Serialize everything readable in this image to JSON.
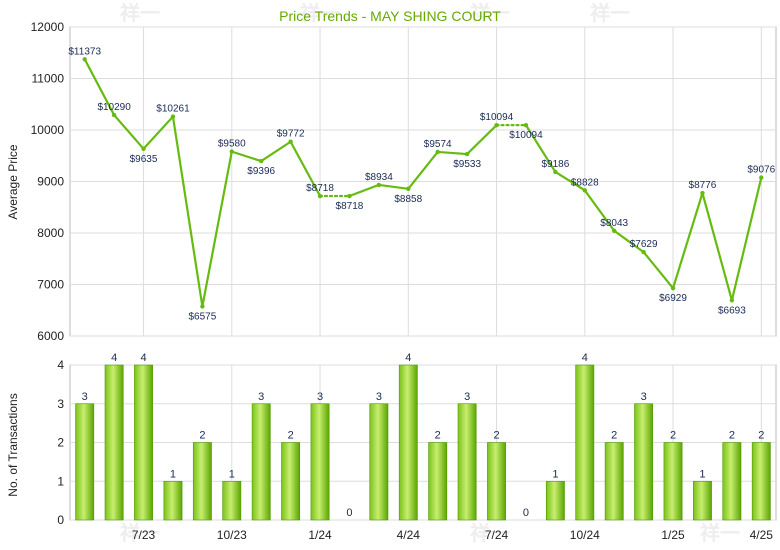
{
  "colors": {
    "line": "#66bb11",
    "bar_light": "#aadd44",
    "bar_dark": "#55aa00",
    "grid": "#dddddd",
    "title": "#66aa00",
    "label": "#1a2a55"
  },
  "watermark": "祥一",
  "chart_data": [
    {
      "type": "line",
      "title": "Price Trends - MAY SHING COURT",
      "ylabel": "Average Price",
      "ylim": [
        6000,
        12000
      ],
      "yticks": [
        6000,
        7000,
        8000,
        9000,
        10000,
        11000,
        12000
      ],
      "grid": true,
      "points": [
        {
          "i": 0,
          "y": 11373,
          "label": "$11373"
        },
        {
          "i": 1,
          "y": 10290,
          "label": "$10290"
        },
        {
          "i": 2,
          "y": 9635,
          "label": "$9635"
        },
        {
          "i": 3,
          "y": 10261,
          "label": "$10261"
        },
        {
          "i": 4,
          "y": 6575,
          "label": "$6575"
        },
        {
          "i": 5,
          "y": 9580,
          "label": "$9580"
        },
        {
          "i": 6,
          "y": 9396,
          "label": "$9396"
        },
        {
          "i": 7,
          "y": 9772,
          "label": "$9772"
        },
        {
          "i": 8,
          "y": 8718,
          "label": "$8718"
        },
        {
          "i": 9,
          "y": 8718,
          "label": "$8718"
        },
        {
          "i": 10,
          "y": 8934,
          "label": "$8934"
        },
        {
          "i": 11,
          "y": 8858,
          "label": "$8858"
        },
        {
          "i": 12,
          "y": 9574,
          "label": "$9574"
        },
        {
          "i": 13,
          "y": 9533,
          "label": "$9533"
        },
        {
          "i": 14,
          "y": 10094,
          "label": "$10094"
        },
        {
          "i": 15,
          "y": 10094,
          "label": "$10094"
        },
        {
          "i": 16,
          "y": 9186,
          "label": "$9186"
        },
        {
          "i": 17,
          "y": 8828,
          "label": "$8828"
        },
        {
          "i": 18,
          "y": 8043,
          "label": "$8043"
        },
        {
          "i": 19,
          "y": 7629,
          "label": "$7629"
        },
        {
          "i": 20,
          "y": 6929,
          "label": "$6929"
        },
        {
          "i": 21,
          "y": 8776,
          "label": "$8776"
        },
        {
          "i": 22,
          "y": 6693,
          "label": "$6693"
        },
        {
          "i": 23,
          "y": 9076,
          "label": "$9076"
        }
      ],
      "dotted_segments": [
        [
          8,
          9
        ],
        [
          14,
          15
        ]
      ]
    },
    {
      "type": "bar",
      "ylabel": "No. of Transactions",
      "ylim": [
        0,
        4
      ],
      "yticks": [
        0,
        1,
        2,
        3,
        4
      ],
      "grid": true,
      "values": [
        3,
        4,
        4,
        1,
        2,
        1,
        3,
        2,
        3,
        0,
        3,
        4,
        2,
        3,
        2,
        0,
        1,
        4,
        2,
        3,
        2,
        1,
        2,
        2
      ],
      "x_tick_labels": [
        {
          "i": 2,
          "label": "7/23"
        },
        {
          "i": 5,
          "label": "10/23"
        },
        {
          "i": 8,
          "label": "1/24"
        },
        {
          "i": 11,
          "label": "4/24"
        },
        {
          "i": 14,
          "label": "7/24"
        },
        {
          "i": 17,
          "label": "10/24"
        },
        {
          "i": 20,
          "label": "1/25"
        },
        {
          "i": 23,
          "label": "4/25"
        }
      ]
    }
  ]
}
